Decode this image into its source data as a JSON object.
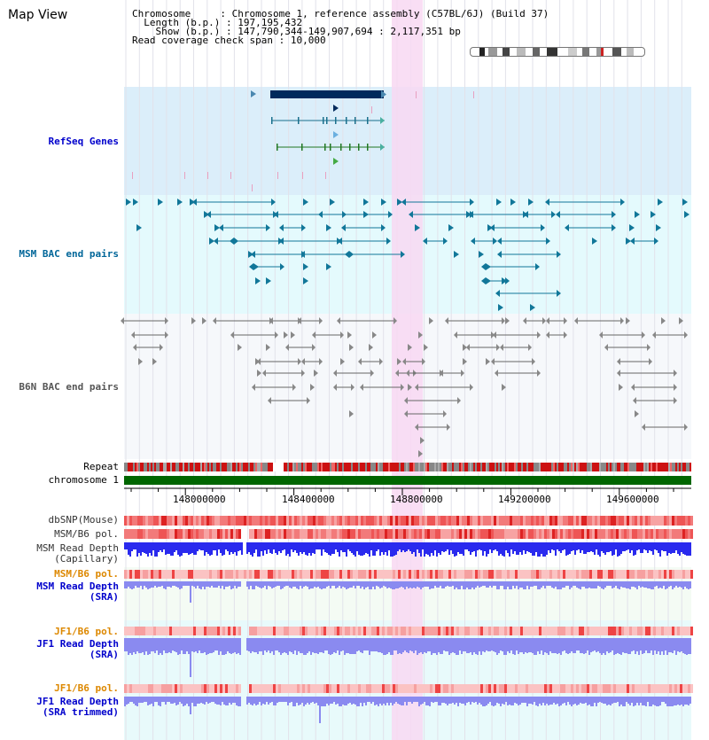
{
  "page": {
    "title": "Map View"
  },
  "info": {
    "chromosome_key": "Chromosome",
    "chromosome_value": "Chromosome 1, reference assembly (C57BL/6J) (Build 37)",
    "length_key": " Length (b.p.)",
    "length_value": "197,195,432",
    "show_key": "   Show (b.p.)",
    "show_value": "147,790,344-149,907,694 : 2,117,351 bp",
    "span_key": "Read coverage check span",
    "span_value": "10,000"
  },
  "tracks": {
    "refseq": {
      "label": "RefSeq Genes",
      "color": "#0000cc"
    },
    "msm_bac": {
      "label": "MSM BAC end pairs",
      "color": "#006699"
    },
    "b6n_bac": {
      "label": "B6N BAC end pairs",
      "color": "#555555"
    },
    "repeat": {
      "label": "Repeat",
      "color": "#000000"
    },
    "chromosome": {
      "label": "chromosome 1",
      "color": "#000000"
    },
    "dbsnp": {
      "label": "dbSNP(Mouse)",
      "color": "#333333"
    },
    "msm_b6_pol_1": {
      "label": "MSM/B6 pol.",
      "color": "#333333"
    },
    "msm_depth_cap_1": {
      "label": "MSM Read Depth",
      "color": "#333333"
    },
    "msm_depth_cap_2": {
      "label": "(Capillary)",
      "color": "#333333"
    },
    "msm_b6_pol_2": {
      "label": "MSM/B6 pol.",
      "color": "#dd8800"
    },
    "msm_depth_sra_1": {
      "label": "MSM Read Depth",
      "color": "#0000cc"
    },
    "msm_depth_sra_2": {
      "label": "(SRA)",
      "color": "#0000cc"
    },
    "jf1_pol_1": {
      "label": "JF1/B6 pol.",
      "color": "#dd8800"
    },
    "jf1_depth_sra_1": {
      "label": "JF1 Read Depth",
      "color": "#0000cc"
    },
    "jf1_depth_sra_2": {
      "label": "(SRA)",
      "color": "#0000cc"
    },
    "jf1_pol_2": {
      "label": "JF1/B6 pol.",
      "color": "#dd8800"
    },
    "jf1_depth_trim_1": {
      "label": "JF1 Read Depth",
      "color": "#0000cc"
    },
    "jf1_depth_trim_2": {
      "label": "(SRA trimmed)",
      "color": "#0000cc"
    }
  },
  "axis": {
    "ticks": [
      "148000000",
      "148400000",
      "148800000",
      "149200000",
      "149600000"
    ]
  },
  "colors": {
    "highlight": "#f8d8f2",
    "refseq_bg": "#dbeefa",
    "msm_bg": "#e4fafd",
    "b6n_bg": "#f6f8fb",
    "gene_dark": "#002a5c",
    "gene_teal": "#1a6f8c",
    "gene_green": "#227722",
    "msm_pair": "#117799",
    "b6n_pair": "#666666",
    "chromosome_bar": "#006600",
    "depth_blue": "#2a2aee",
    "depth_light": "#8a8af0",
    "snp_red": "#ee4444"
  }
}
